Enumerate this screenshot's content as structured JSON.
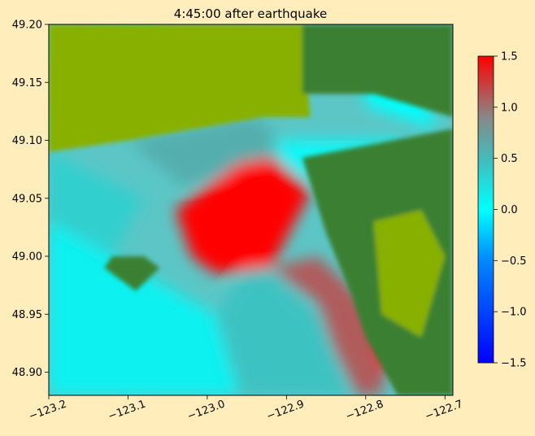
{
  "chart_data": {
    "type": "heatmap",
    "title": "4:45:00 after earthquake",
    "xlabel": "",
    "ylabel": "",
    "xlim": [
      -123.2,
      -122.69
    ],
    "ylim": [
      48.88,
      49.2
    ],
    "x_ticks": [
      {
        "value": -123.2,
        "label": "−123.2"
      },
      {
        "value": -123.1,
        "label": "−123.1"
      },
      {
        "value": -123.0,
        "label": "−123.0"
      },
      {
        "value": -122.9,
        "label": "−122.9"
      },
      {
        "value": -122.8,
        "label": "−122.8"
      },
      {
        "value": -122.7,
        "label": "−122.7"
      }
    ],
    "y_ticks": [
      {
        "value": 48.9,
        "label": "48.90"
      },
      {
        "value": 48.95,
        "label": "48.95"
      },
      {
        "value": 49.0,
        "label": "49.00"
      },
      {
        "value": 49.05,
        "label": "49.05"
      },
      {
        "value": 49.1,
        "label": "49.10"
      },
      {
        "value": 49.15,
        "label": "49.15"
      },
      {
        "value": 49.2,
        "label": "49.20"
      }
    ],
    "colorbar": {
      "range": [
        -1.5,
        1.5
      ],
      "ticks": [
        {
          "value": 1.5,
          "label": "1.5"
        },
        {
          "value": 1.0,
          "label": "1.0"
        },
        {
          "value": 0.5,
          "label": "0.5"
        },
        {
          "value": 0.0,
          "label": "0.0"
        },
        {
          "value": -0.5,
          "label": "−0.5"
        },
        {
          "value": -1.0,
          "label": "−1.0"
        },
        {
          "value": -1.5,
          "label": "−1.5"
        }
      ],
      "stops": [
        {
          "value": -1.5,
          "color": "#0000ff"
        },
        {
          "value": -0.5,
          "color": "#0088ff"
        },
        {
          "value": 0.0,
          "color": "#00ffff"
        },
        {
          "value": 0.5,
          "color": "#44bbbb"
        },
        {
          "value": 0.9,
          "color": "#888888"
        },
        {
          "value": 1.5,
          "color": "#ff0000"
        }
      ]
    },
    "colors": {
      "background": "#ffeebb",
      "land_low": "#88b000",
      "land_high": "#3a8032",
      "water_calm": "#00eef0",
      "wave_high": "#ff0000"
    },
    "regions": [
      {
        "kind": "water",
        "value": 0.1,
        "polygon": [
          [
            -123.2,
            48.88
          ],
          [
            -122.96,
            48.88
          ],
          [
            -122.99,
            48.95
          ],
          [
            -123.12,
            49.0
          ],
          [
            -123.2,
            49.03
          ]
        ]
      },
      {
        "kind": "water",
        "value": 0.45,
        "polygon": [
          [
            -122.96,
            48.88
          ],
          [
            -122.82,
            48.88
          ],
          [
            -122.86,
            48.95
          ],
          [
            -122.94,
            49.0
          ],
          [
            -122.99,
            48.95
          ]
        ]
      },
      {
        "kind": "water",
        "value": 0.35,
        "polygon": [
          [
            -123.2,
            49.03
          ],
          [
            -123.12,
            49.0
          ],
          [
            -123.08,
            49.05
          ],
          [
            -123.2,
            49.09
          ]
        ]
      },
      {
        "kind": "water",
        "value": 0.6,
        "polygon": [
          [
            -123.1,
            49.1
          ],
          [
            -122.94,
            49.12
          ],
          [
            -122.88,
            49.09
          ],
          [
            -123.03,
            49.06
          ]
        ]
      },
      {
        "kind": "water",
        "value": 1.5,
        "polygon": [
          [
            -123.04,
            49.04
          ],
          [
            -122.96,
            49.08
          ],
          [
            -122.92,
            49.085
          ],
          [
            -122.87,
            49.055
          ],
          [
            -122.92,
            48.99
          ],
          [
            -122.99,
            48.985
          ],
          [
            -123.02,
            49.0
          ]
        ]
      },
      {
        "kind": "water",
        "value": 1.1,
        "polygon": [
          [
            -122.92,
            48.99
          ],
          [
            -122.86,
            48.96
          ],
          [
            -122.84,
            48.92
          ],
          [
            -122.81,
            48.88
          ],
          [
            -122.78,
            48.88
          ],
          [
            -122.77,
            48.92
          ],
          [
            -122.8,
            48.96
          ],
          [
            -122.86,
            49.0
          ]
        ]
      },
      {
        "kind": "water",
        "value": 1.45,
        "polygon": [
          [
            -122.79,
            48.975
          ],
          [
            -122.77,
            48.99
          ],
          [
            -122.75,
            48.965
          ],
          [
            -122.76,
            48.955
          ]
        ]
      },
      {
        "kind": "water",
        "value": 1.45,
        "polygon": [
          [
            -122.79,
            48.93
          ],
          [
            -122.78,
            48.9
          ],
          [
            -122.76,
            48.91
          ],
          [
            -122.77,
            48.93
          ]
        ]
      },
      {
        "kind": "water",
        "value": 0.05,
        "polygon": [
          [
            -122.92,
            49.1
          ],
          [
            -122.76,
            49.1
          ],
          [
            -122.71,
            49.08
          ],
          [
            -122.72,
            49.05
          ],
          [
            -122.85,
            49.06
          ],
          [
            -122.9,
            49.08
          ]
        ]
      },
      {
        "kind": "water",
        "value": 0.0,
        "polygon": [
          [
            -122.8,
            49.16
          ],
          [
            -122.74,
            49.16
          ],
          [
            -122.71,
            49.11
          ],
          [
            -122.8,
            49.13
          ]
        ]
      },
      {
        "kind": "water",
        "value": 0.0,
        "polygon": [
          [
            -123.2,
            49.19
          ],
          [
            -123.07,
            49.2
          ],
          [
            -123.03,
            49.17
          ],
          [
            -123.1,
            49.16
          ],
          [
            -123.2,
            49.17
          ]
        ]
      },
      {
        "kind": "water",
        "value": 0.0,
        "polygon": [
          [
            -123.2,
            49.12
          ],
          [
            -123.12,
            49.13
          ],
          [
            -123.05,
            49.155
          ],
          [
            -123.06,
            49.145
          ],
          [
            -123.13,
            49.115
          ],
          [
            -123.2,
            49.105
          ]
        ]
      },
      {
        "kind": "land_low",
        "polygon": [
          [
            -123.2,
            49.2
          ],
          [
            -122.88,
            49.2
          ],
          [
            -122.87,
            49.12
          ],
          [
            -122.93,
            49.12
          ],
          [
            -123.1,
            49.1
          ],
          [
            -123.2,
            49.09
          ]
        ]
      },
      {
        "kind": "land_high",
        "polygon": [
          [
            -122.88,
            49.2
          ],
          [
            -122.69,
            49.2
          ],
          [
            -122.69,
            49.12
          ],
          [
            -122.79,
            49.14
          ],
          [
            -122.88,
            49.14
          ]
        ]
      },
      {
        "kind": "land_high",
        "polygon": [
          [
            -122.88,
            49.085
          ],
          [
            -122.69,
            49.11
          ],
          [
            -122.69,
            48.88
          ],
          [
            -122.76,
            48.88
          ],
          [
            -122.8,
            48.93
          ],
          [
            -122.82,
            48.97
          ],
          [
            -122.85,
            49.02
          ]
        ]
      },
      {
        "kind": "land_high",
        "polygon": [
          [
            -123.12,
            49.0
          ],
          [
            -123.08,
            49.0
          ],
          [
            -123.06,
            48.99
          ],
          [
            -123.09,
            48.97
          ],
          [
            -123.13,
            48.99
          ]
        ]
      },
      {
        "kind": "land_low",
        "polygon": [
          [
            -122.79,
            49.03
          ],
          [
            -122.73,
            49.04
          ],
          [
            -122.7,
            49.0
          ],
          [
            -122.73,
            48.93
          ],
          [
            -122.78,
            48.95
          ]
        ]
      }
    ]
  }
}
